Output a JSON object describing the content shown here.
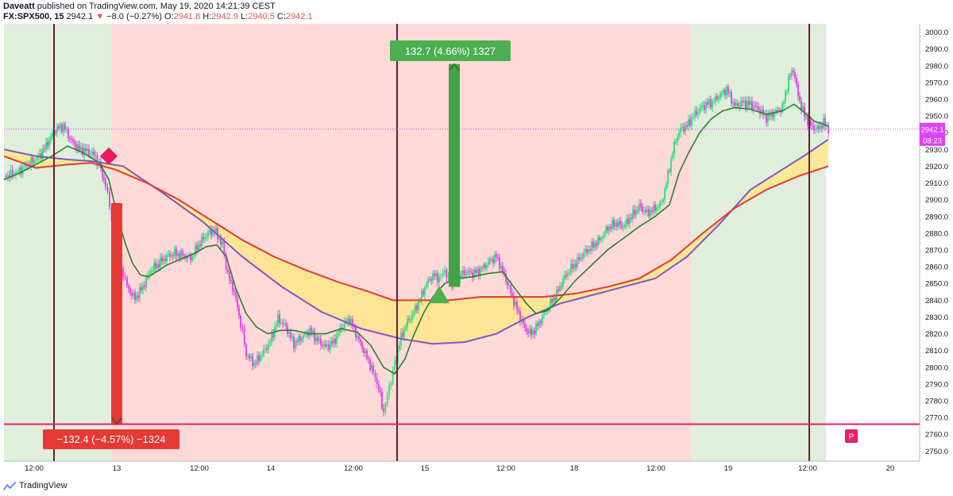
{
  "header": {
    "publisher": "Daveatt",
    "published_text": " published on TradingView.com, May 19, 2020 14:21:39 CEST",
    "symbol": "FX:SPX500, 15",
    "price": "2942.1",
    "change": "−8.0 (−0.27%)",
    "o_label": "O:",
    "o_value": "2941.8",
    "h_label": "H:",
    "h_value": "2942.9",
    "l_label": "L:",
    "l_value": "2940.5",
    "c_label": "C:",
    "c_value": "2942.1"
  },
  "footer": {
    "brand": "TradingView"
  },
  "colors": {
    "green_bg": "#e0eedc",
    "red_bg": "#fddad8",
    "up_candle": "#26e07a",
    "down_candle": "#e040e0",
    "fast_ma": "#2e7d32",
    "mid_ma": "#e53935",
    "slow_ma": "#7e57c2",
    "cloud": "#fde68a",
    "level_line": "#e91e63",
    "session_line": "#6d1b3a",
    "long_arrow": "#43a047",
    "short_arrow": "#e53935"
  },
  "chart_data": {
    "type": "line",
    "title": "",
    "xlabel": "",
    "ylabel": "",
    "ylim": [
      2744,
      3005
    ],
    "y_ticks": [
      3000.0,
      2990.0,
      2980.0,
      2970.0,
      2960.0,
      2950.0,
      2940.0,
      2930.0,
      2920.0,
      2910.0,
      2900.0,
      2890.0,
      2880.0,
      2870.0,
      2860.0,
      2850.0,
      2840.0,
      2830.0,
      2820.0,
      2810.0,
      2800.0,
      2790.0,
      2780.0,
      2770.0,
      2760.0,
      2750.0
    ],
    "x_ticks": [
      "12:00",
      "13",
      "12:00",
      "14",
      "12:00",
      "15",
      "12:00",
      "18",
      "12:00",
      "19",
      "12:00",
      "20"
    ],
    "last_price_label": "2942.1",
    "countdown_label": "08:23",
    "level_line_price": 2766,
    "marker_label": "P",
    "short_measure_label": "−132.4 (−4.57%) −1324",
    "long_measure_label": "132.7 (4.66%) 1327",
    "price_series": [
      [
        0,
        2914
      ],
      [
        15,
        2916
      ],
      [
        30,
        2921
      ],
      [
        45,
        2926
      ],
      [
        55,
        2934
      ],
      [
        65,
        2942
      ],
      [
        75,
        2944
      ],
      [
        85,
        2935
      ],
      [
        95,
        2930
      ],
      [
        105,
        2929
      ],
      [
        115,
        2926
      ],
      [
        122,
        2918
      ],
      [
        128,
        2908
      ],
      [
        133,
        2897
      ],
      [
        138,
        2880
      ],
      [
        145,
        2862
      ],
      [
        150,
        2856
      ],
      [
        155,
        2848
      ],
      [
        165,
        2841
      ],
      [
        175,
        2848
      ],
      [
        185,
        2858
      ],
      [
        195,
        2862
      ],
      [
        205,
        2866
      ],
      [
        215,
        2868
      ],
      [
        225,
        2867
      ],
      [
        235,
        2865
      ],
      [
        245,
        2873
      ],
      [
        255,
        2879
      ],
      [
        265,
        2882
      ],
      [
        275,
        2873
      ],
      [
        282,
        2855
      ],
      [
        290,
        2845
      ],
      [
        298,
        2826
      ],
      [
        305,
        2808
      ],
      [
        315,
        2802
      ],
      [
        325,
        2808
      ],
      [
        335,
        2815
      ],
      [
        345,
        2829
      ],
      [
        355,
        2824
      ],
      [
        365,
        2814
      ],
      [
        375,
        2818
      ],
      [
        385,
        2822
      ],
      [
        395,
        2816
      ],
      [
        405,
        2812
      ],
      [
        415,
        2815
      ],
      [
        425,
        2824
      ],
      [
        435,
        2829
      ],
      [
        445,
        2818
      ],
      [
        455,
        2808
      ],
      [
        465,
        2797
      ],
      [
        472,
        2787
      ],
      [
        478,
        2773
      ],
      [
        485,
        2788
      ],
      [
        492,
        2802
      ],
      [
        500,
        2818
      ],
      [
        508,
        2827
      ],
      [
        516,
        2833
      ],
      [
        524,
        2841
      ],
      [
        532,
        2850
      ],
      [
        540,
        2855
      ],
      [
        548,
        2853
      ],
      [
        555,
        2858
      ],
      [
        562,
        2850
      ],
      [
        570,
        2852
      ],
      [
        580,
        2857
      ],
      [
        590,
        2856
      ],
      [
        600,
        2858
      ],
      [
        610,
        2863
      ],
      [
        620,
        2866
      ],
      [
        630,
        2855
      ],
      [
        640,
        2842
      ],
      [
        648,
        2832
      ],
      [
        656,
        2823
      ],
      [
        664,
        2820
      ],
      [
        672,
        2825
      ],
      [
        680,
        2832
      ],
      [
        688,
        2838
      ],
      [
        696,
        2844
      ],
      [
        704,
        2852
      ],
      [
        712,
        2858
      ],
      [
        720,
        2862
      ],
      [
        730,
        2868
      ],
      [
        740,
        2872
      ],
      [
        750,
        2876
      ],
      [
        760,
        2883
      ],
      [
        770,
        2886
      ],
      [
        780,
        2884
      ],
      [
        790,
        2890
      ],
      [
        800,
        2896
      ],
      [
        810,
        2892
      ],
      [
        820,
        2895
      ],
      [
        828,
        2898
      ],
      [
        834,
        2910
      ],
      [
        840,
        2924
      ],
      [
        846,
        2936
      ],
      [
        852,
        2942
      ],
      [
        860,
        2944
      ],
      [
        868,
        2950
      ],
      [
        876,
        2954
      ],
      [
        884,
        2957
      ],
      [
        892,
        2958
      ],
      [
        900,
        2962
      ],
      [
        910,
        2966
      ],
      [
        920,
        2956
      ],
      [
        930,
        2958
      ],
      [
        940,
        2957
      ],
      [
        950,
        2954
      ],
      [
        960,
        2949
      ],
      [
        970,
        2952
      ],
      [
        980,
        2955
      ],
      [
        988,
        2972
      ],
      [
        994,
        2978
      ],
      [
        1000,
        2962
      ],
      [
        1008,
        2950
      ],
      [
        1016,
        2944
      ],
      [
        1024,
        2942
      ],
      [
        1032,
        2946
      ],
      [
        1038,
        2942
      ]
    ],
    "series": [
      {
        "values": [
          [
            0,
            2912
          ],
          [
            20,
            2916
          ],
          [
            40,
            2921
          ],
          [
            60,
            2926
          ],
          [
            80,
            2932
          ],
          [
            100,
            2928
          ],
          [
            120,
            2922
          ],
          [
            132,
            2912
          ],
          [
            142,
            2892
          ],
          [
            152,
            2875
          ],
          [
            162,
            2862
          ],
          [
            172,
            2855
          ],
          [
            182,
            2854
          ],
          [
            192,
            2857
          ],
          [
            205,
            2861
          ],
          [
            220,
            2864
          ],
          [
            240,
            2868
          ],
          [
            255,
            2872
          ],
          [
            268,
            2873
          ],
          [
            280,
            2866
          ],
          [
            292,
            2847
          ],
          [
            305,
            2832
          ],
          [
            318,
            2824
          ],
          [
            332,
            2820
          ],
          [
            348,
            2822
          ],
          [
            365,
            2822
          ],
          [
            385,
            2820
          ],
          [
            405,
            2820
          ],
          [
            425,
            2823
          ],
          [
            445,
            2821
          ],
          [
            462,
            2813
          ],
          [
            478,
            2800
          ],
          [
            492,
            2796
          ],
          [
            505,
            2805
          ],
          [
            515,
            2818
          ],
          [
            528,
            2832
          ],
          [
            540,
            2842
          ],
          [
            555,
            2850
          ],
          [
            570,
            2853
          ],
          [
            590,
            2854
          ],
          [
            610,
            2856
          ],
          [
            628,
            2857
          ],
          [
            645,
            2846
          ],
          [
            658,
            2838
          ],
          [
            670,
            2832
          ],
          [
            685,
            2834
          ],
          [
            700,
            2841
          ],
          [
            720,
            2852
          ],
          [
            740,
            2861
          ],
          [
            760,
            2870
          ],
          [
            780,
            2877
          ],
          [
            800,
            2884
          ],
          [
            820,
            2890
          ],
          [
            838,
            2897
          ],
          [
            850,
            2916
          ],
          [
            862,
            2928
          ],
          [
            876,
            2940
          ],
          [
            890,
            2948
          ],
          [
            905,
            2953
          ],
          [
            920,
            2955
          ],
          [
            940,
            2954
          ],
          [
            960,
            2951
          ],
          [
            980,
            2953
          ],
          [
            995,
            2957
          ],
          [
            1008,
            2952
          ],
          [
            1020,
            2947
          ],
          [
            1038,
            2944
          ]
        ]
      },
      {
        "values": [
          [
            0,
            2926
          ],
          [
            40,
            2919
          ],
          [
            80,
            2921
          ],
          [
            110,
            2922
          ],
          [
            140,
            2918
          ],
          [
            180,
            2910
          ],
          [
            220,
            2900
          ],
          [
            260,
            2888
          ],
          [
            300,
            2876
          ],
          [
            340,
            2866
          ],
          [
            380,
            2858
          ],
          [
            420,
            2851
          ],
          [
            460,
            2845
          ],
          [
            490,
            2840
          ],
          [
            520,
            2840
          ],
          [
            560,
            2840
          ],
          [
            600,
            2842
          ],
          [
            640,
            2842
          ],
          [
            680,
            2842
          ],
          [
            720,
            2844
          ],
          [
            760,
            2848
          ],
          [
            800,
            2853
          ],
          [
            840,
            2864
          ],
          [
            880,
            2880
          ],
          [
            920,
            2895
          ],
          [
            960,
            2906
          ],
          [
            1000,
            2914
          ],
          [
            1038,
            2920
          ]
        ]
      },
      {
        "values": [
          [
            0,
            2930
          ],
          [
            40,
            2926
          ],
          [
            80,
            2924
          ],
          [
            110,
            2923
          ],
          [
            150,
            2920
          ],
          [
            200,
            2904
          ],
          [
            250,
            2887
          ],
          [
            300,
            2866
          ],
          [
            350,
            2848
          ],
          [
            400,
            2833
          ],
          [
            450,
            2823
          ],
          [
            500,
            2817
          ],
          [
            540,
            2814
          ],
          [
            580,
            2815
          ],
          [
            620,
            2820
          ],
          [
            660,
            2830
          ],
          [
            700,
            2838
          ],
          [
            740,
            2843
          ],
          [
            780,
            2848
          ],
          [
            820,
            2853
          ],
          [
            860,
            2866
          ],
          [
            900,
            2885
          ],
          [
            940,
            2906
          ],
          [
            980,
            2918
          ],
          [
            1010,
            2927
          ],
          [
            1038,
            2936
          ]
        ]
      }
    ],
    "annotations": [
      {
        "type": "sell",
        "x": 132,
        "price": 2926
      },
      {
        "type": "buy",
        "x": 548,
        "price": 2842
      },
      {
        "type": "short_measure",
        "x": 142,
        "from": 2898,
        "to": 2766
      },
      {
        "type": "long_measure",
        "x": 567,
        "from": 2848,
        "to": 2981
      }
    ]
  }
}
